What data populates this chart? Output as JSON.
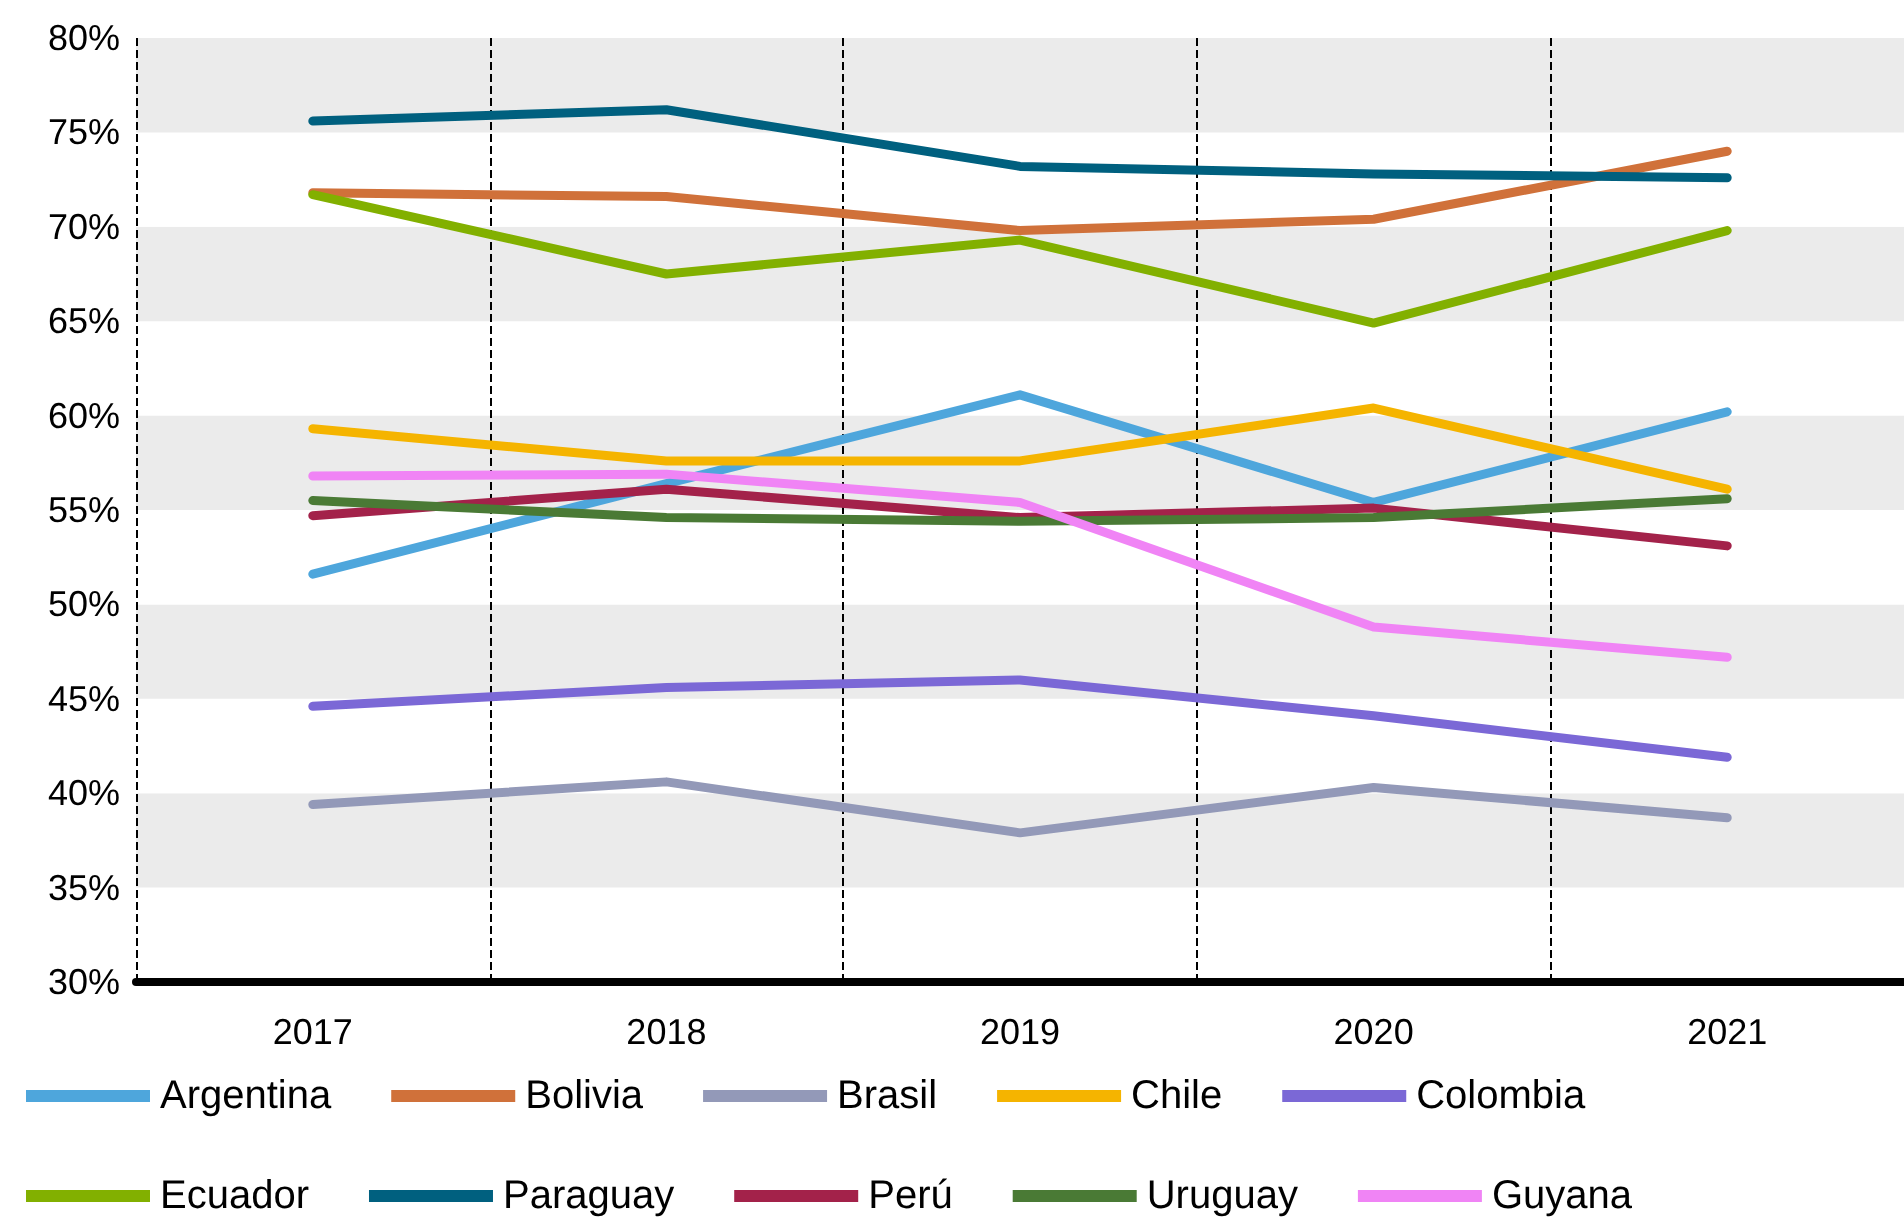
{
  "chart_data": {
    "type": "line",
    "categories": [
      "2017",
      "2018",
      "2019",
      "2020",
      "2021"
    ],
    "ylim": [
      30,
      80
    ],
    "yticks": [
      {
        "value": 30,
        "label": "30%"
      },
      {
        "value": 35,
        "label": "35%"
      },
      {
        "value": 40,
        "label": "40%"
      },
      {
        "value": 45,
        "label": "45%"
      },
      {
        "value": 50,
        "label": "50%"
      },
      {
        "value": 55,
        "label": "55%"
      },
      {
        "value": 60,
        "label": "60%"
      },
      {
        "value": 65,
        "label": "65%"
      },
      {
        "value": 70,
        "label": "70%"
      },
      {
        "value": 75,
        "label": "75%"
      },
      {
        "value": 80,
        "label": "80%"
      }
    ],
    "grid": true,
    "legend": "bottom",
    "marker": "none",
    "line_style": "solid",
    "series": [
      {
        "name": "Argentina",
        "color": "#4ea6dc",
        "values": [
          51.6,
          56.4,
          61.1,
          55.4,
          60.2
        ]
      },
      {
        "name": "Bolivia",
        "color": "#d0713a",
        "values": [
          71.8,
          71.6,
          69.8,
          70.4,
          74.0
        ]
      },
      {
        "name": "Brasil",
        "color": "#9399b8",
        "values": [
          39.4,
          40.6,
          37.9,
          40.3,
          38.7
        ]
      },
      {
        "name": "Chile",
        "color": "#f5b400",
        "values": [
          59.3,
          57.6,
          57.6,
          60.4,
          56.1
        ]
      },
      {
        "name": "Colombia",
        "color": "#7b68d6",
        "values": [
          44.6,
          45.6,
          46.0,
          44.1,
          41.9
        ]
      },
      {
        "name": "Ecuador",
        "color": "#82b000",
        "values": [
          71.7,
          67.5,
          69.3,
          64.9,
          69.8
        ]
      },
      {
        "name": "Paraguay",
        "color": "#00607f",
        "values": [
          75.6,
          76.2,
          73.2,
          72.8,
          72.6
        ]
      },
      {
        "name": "Perú",
        "color": "#a3224a",
        "values": [
          54.7,
          56.1,
          54.6,
          55.1,
          53.1
        ]
      },
      {
        "name": "Uruguay",
        "color": "#4a7a35",
        "values": [
          55.5,
          54.6,
          54.4,
          54.6,
          55.6
        ]
      },
      {
        "name": "Guyana",
        "color": "#f084f5",
        "values": [
          56.8,
          56.9,
          55.4,
          48.8,
          47.2
        ]
      }
    ]
  }
}
